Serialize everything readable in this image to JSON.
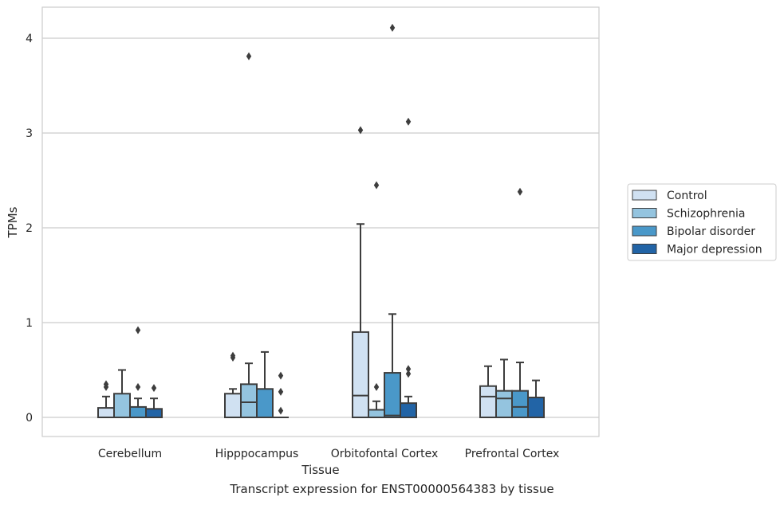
{
  "chart_data": {
    "type": "box",
    "title": "",
    "xlabel": "Tissue",
    "ylabel": "TPMs",
    "caption": "Transcript expression for ENST00000564383 by tissue",
    "ylim": [
      -0.2,
      4.32
    ],
    "yticks": [
      0,
      1,
      2,
      3,
      4
    ],
    "grid": "horizontal",
    "legend_position": "right",
    "categories": [
      "Cerebellum",
      "Hipppocampus",
      "Orbitofontal Cortex",
      "Prefrontal Cortex"
    ],
    "series": [
      {
        "name": "Control",
        "color": "#d0e1f2",
        "boxes": [
          {
            "whislo": 0,
            "q1": 0,
            "med": 0,
            "q3": 0.1,
            "whishi": 0.22,
            "fliers": [
              0.32,
              0.35
            ]
          },
          {
            "whislo": 0,
            "q1": 0,
            "med": 0,
            "q3": 0.25,
            "whishi": 0.3,
            "fliers": [
              0.63,
              0.65
            ]
          },
          {
            "whislo": 0,
            "q1": 0,
            "med": 0.23,
            "q3": 0.9,
            "whishi": 2.04,
            "fliers": [
              3.03
            ]
          },
          {
            "whislo": 0,
            "q1": 0,
            "med": 0.22,
            "q3": 0.33,
            "whishi": 0.54,
            "fliers": []
          }
        ]
      },
      {
        "name": "Schizophrenia",
        "color": "#94c4df",
        "boxes": [
          {
            "whislo": 0,
            "q1": 0,
            "med": 0,
            "q3": 0.25,
            "whishi": 0.5,
            "fliers": []
          },
          {
            "whislo": 0,
            "q1": 0,
            "med": 0.16,
            "q3": 0.35,
            "whishi": 0.57,
            "fliers": [
              3.81
            ]
          },
          {
            "whislo": 0,
            "q1": 0,
            "med": 0,
            "q3": 0.08,
            "whishi": 0.17,
            "fliers": [
              0.32,
              2.45
            ]
          },
          {
            "whislo": 0,
            "q1": 0,
            "med": 0.2,
            "q3": 0.28,
            "whishi": 0.61,
            "fliers": []
          }
        ]
      },
      {
        "name": "Bipolar disorder",
        "color": "#4a98c9",
        "boxes": [
          {
            "whislo": 0,
            "q1": 0,
            "med": 0,
            "q3": 0.11,
            "whishi": 0.2,
            "fliers": [
              0.32,
              0.92
            ]
          },
          {
            "whislo": 0,
            "q1": 0,
            "med": 0,
            "q3": 0.3,
            "whishi": 0.69,
            "fliers": []
          },
          {
            "whislo": 0,
            "q1": 0,
            "med": 0.02,
            "q3": 0.47,
            "whishi": 1.09,
            "fliers": [
              4.11
            ]
          },
          {
            "whislo": 0,
            "q1": 0,
            "med": 0.11,
            "q3": 0.28,
            "whishi": 0.58,
            "fliers": [
              2.38
            ]
          }
        ]
      },
      {
        "name": "Major depression",
        "color": "#2264a6",
        "boxes": [
          {
            "whislo": 0,
            "q1": 0,
            "med": 0,
            "q3": 0.09,
            "whishi": 0.2,
            "fliers": [
              0.31
            ]
          },
          {
            "whislo": 0,
            "q1": 0,
            "med": 0,
            "q3": 0,
            "whishi": 0,
            "fliers": [
              0.07,
              0.27,
              0.44
            ]
          },
          {
            "whislo": 0,
            "q1": 0,
            "med": 0,
            "q3": 0.15,
            "whishi": 0.22,
            "fliers": [
              0.46,
              0.51,
              3.12
            ]
          },
          {
            "whislo": 0,
            "q1": 0,
            "med": 0,
            "q3": 0.21,
            "whishi": 0.39,
            "fliers": []
          }
        ]
      }
    ]
  }
}
